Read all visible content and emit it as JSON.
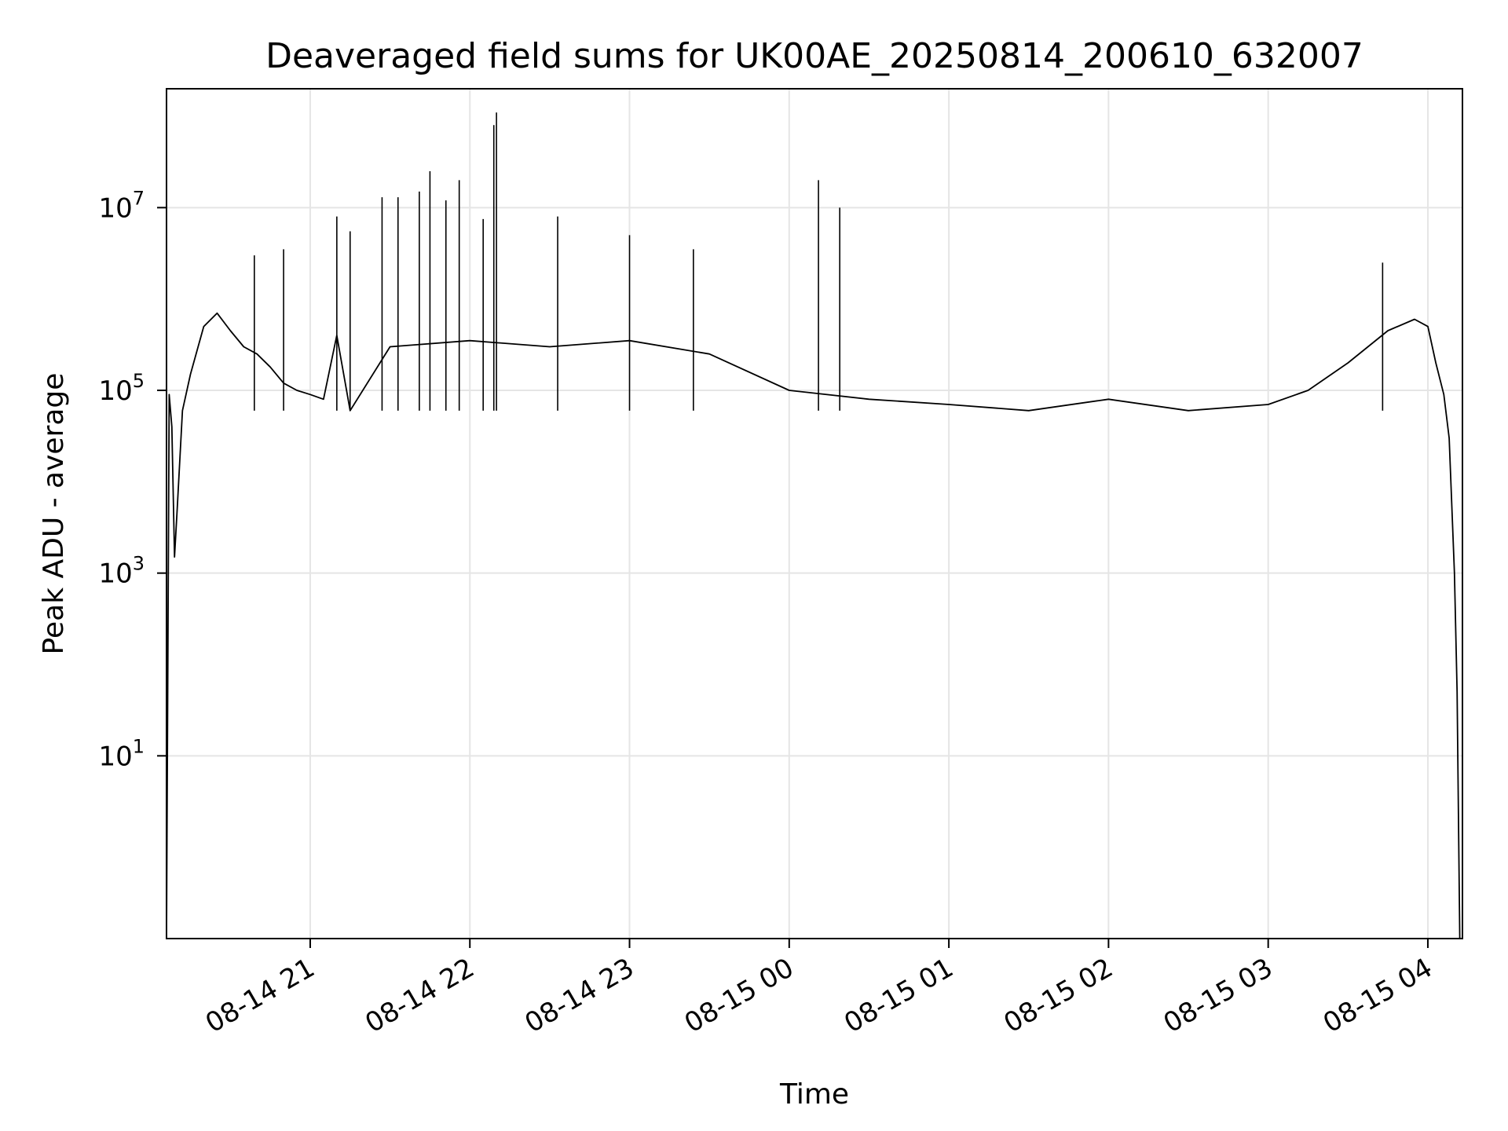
{
  "chart_data": {
    "type": "line",
    "title": "Deaveraged field sums for UK00AE_20250814_200610_632007",
    "xlabel": "Time",
    "ylabel": "Peak ADU - average",
    "yscale": "log",
    "ylim": [
      0.1,
      200000000
    ],
    "xlim": [
      "2025-08-14 20:06",
      "2025-08-15 04:13"
    ],
    "grid": true,
    "line_color": "#000000",
    "grid_color": "#e5e5e5",
    "x_ticks": [
      {
        "t": "2025-08-14 21:00",
        "label": "08-14 21"
      },
      {
        "t": "2025-08-14 22:00",
        "label": "08-14 22"
      },
      {
        "t": "2025-08-14 23:00",
        "label": "08-14 23"
      },
      {
        "t": "2025-08-15 00:00",
        "label": "08-15 00"
      },
      {
        "t": "2025-08-15 01:00",
        "label": "08-15 01"
      },
      {
        "t": "2025-08-15 02:00",
        "label": "08-15 02"
      },
      {
        "t": "2025-08-15 03:00",
        "label": "08-15 03"
      },
      {
        "t": "2025-08-15 04:00",
        "label": "08-15 04"
      }
    ],
    "y_ticks": [
      {
        "value": 10,
        "base": "10",
        "exp": "1"
      },
      {
        "value": 1000,
        "base": "10",
        "exp": "3"
      },
      {
        "value": 100000,
        "base": "10",
        "exp": "5"
      },
      {
        "value": 10000000,
        "base": "10",
        "exp": "7"
      }
    ],
    "series": [
      {
        "x": [
          "2025-08-14 20:06",
          "2025-08-14 20:07",
          "2025-08-14 20:08",
          "2025-08-14 20:09",
          "2025-08-14 20:10",
          "2025-08-14 20:12",
          "2025-08-14 20:15",
          "2025-08-14 20:20",
          "2025-08-14 20:25",
          "2025-08-14 20:30",
          "2025-08-14 20:35",
          "2025-08-14 20:40",
          "2025-08-14 20:45",
          "2025-08-14 20:50",
          "2025-08-14 20:55",
          "2025-08-14 21:00",
          "2025-08-14 21:05",
          "2025-08-14 21:10",
          "2025-08-14 21:15",
          "2025-08-14 21:30",
          "2025-08-14 22:00",
          "2025-08-14 22:30",
          "2025-08-14 23:00",
          "2025-08-14 23:30",
          "2025-08-15 00:00",
          "2025-08-15 00:30",
          "2025-08-15 01:00",
          "2025-08-15 01:30",
          "2025-08-15 02:00",
          "2025-08-15 02:30",
          "2025-08-15 03:00",
          "2025-08-15 03:15",
          "2025-08-15 03:30",
          "2025-08-15 03:45",
          "2025-08-15 03:55",
          "2025-08-15 04:00",
          "2025-08-15 04:03",
          "2025-08-15 04:06",
          "2025-08-15 04:08",
          "2025-08-15 04:10",
          "2025-08-15 04:11",
          "2025-08-15 04:12",
          "2025-08-15 04:13"
        ],
        "y": [
          0.1,
          90000,
          40000,
          1500,
          5000,
          60000,
          150000,
          500000,
          700000,
          450000,
          300000,
          250000,
          180000,
          120000,
          100000,
          90000,
          80000,
          400000,
          60000,
          300000,
          350000,
          300000,
          350000,
          250000,
          100000,
          80000,
          70000,
          60000,
          80000,
          60000,
          70000,
          100000,
          200000,
          450000,
          600000,
          500000,
          200000,
          90000,
          30000,
          1000,
          50,
          0.1,
          0.1
        ]
      }
    ],
    "spikes": [
      {
        "x": "2025-08-14 20:39",
        "y": 3000000
      },
      {
        "x": "2025-08-14 20:50",
        "y": 3500000
      },
      {
        "x": "2025-08-14 21:10",
        "y": 8000000
      },
      {
        "x": "2025-08-14 21:15",
        "y": 5500000
      },
      {
        "x": "2025-08-14 21:27",
        "y": 13000000
      },
      {
        "x": "2025-08-14 21:33",
        "y": 13000000
      },
      {
        "x": "2025-08-14 21:41",
        "y": 15000000
      },
      {
        "x": "2025-08-14 21:45",
        "y": 25000000
      },
      {
        "x": "2025-08-14 21:51",
        "y": 12000000
      },
      {
        "x": "2025-08-14 21:56",
        "y": 20000000
      },
      {
        "x": "2025-08-14 22:05",
        "y": 7500000
      },
      {
        "x": "2025-08-14 22:09",
        "y": 80000000
      },
      {
        "x": "2025-08-14 22:10",
        "y": 110000000
      },
      {
        "x": "2025-08-14 22:33",
        "y": 8000000
      },
      {
        "x": "2025-08-14 23:00",
        "y": 5000000
      },
      {
        "x": "2025-08-14 23:24",
        "y": 3500000
      },
      {
        "x": "2025-08-15 00:11",
        "y": 20000000
      },
      {
        "x": "2025-08-15 00:19",
        "y": 10000000
      },
      {
        "x": "2025-08-15 03:43",
        "y": 2500000
      }
    ]
  }
}
